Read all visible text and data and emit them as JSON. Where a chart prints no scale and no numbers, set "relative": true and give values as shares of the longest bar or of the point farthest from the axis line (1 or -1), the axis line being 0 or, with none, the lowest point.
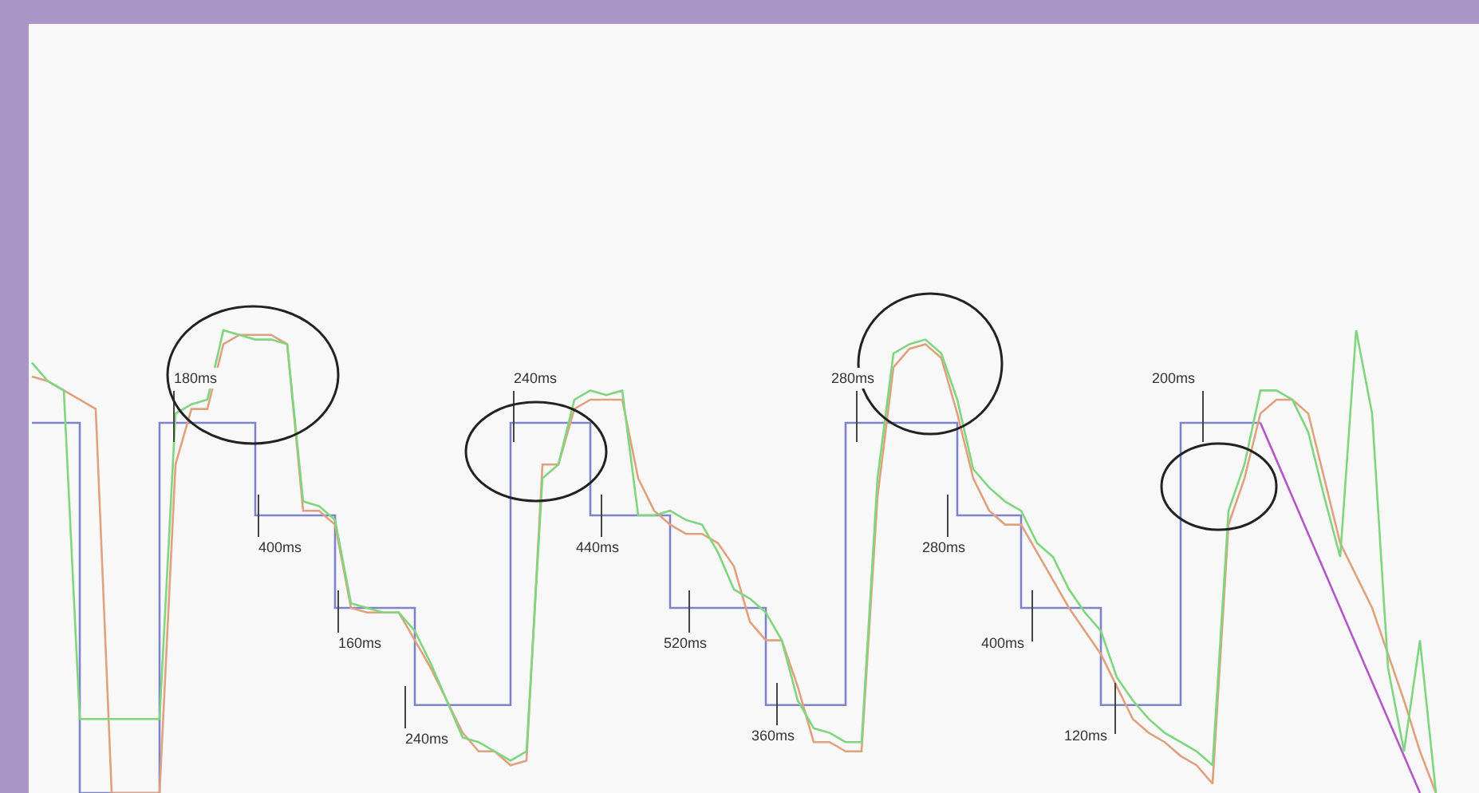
{
  "chart_data": {
    "type": "line",
    "relative": true,
    "marker": "none",
    "categories": [
      null,
      null,
      null,
      null,
      null,
      null,
      null,
      null,
      null,
      null,
      null,
      null,
      null,
      null,
      null,
      null,
      null,
      null,
      null,
      null,
      null,
      null,
      null,
      null,
      null,
      null,
      null,
      null,
      null,
      null,
      null,
      null,
      null,
      null,
      null,
      null,
      null,
      null,
      null,
      null,
      null,
      null,
      null,
      null,
      null,
      null,
      null,
      null,
      null,
      null,
      null,
      null,
      null,
      null,
      null,
      null,
      null,
      null,
      null,
      null,
      null,
      null,
      null,
      null,
      null,
      null,
      null,
      null,
      null,
      null,
      null,
      null,
      null,
      null,
      null,
      null,
      null,
      null,
      null,
      null,
      null,
      null,
      null,
      null,
      null,
      null,
      null,
      null,
      null
    ],
    "series": [
      {
        "type": "step",
        "color": "#7f84c9",
        "values": [
          0.8,
          0.8,
          0.8,
          0,
          0,
          0,
          0,
          0,
          0.8,
          0.8,
          0.8,
          0.8,
          0.8,
          0.8,
          0.6,
          0.6,
          0.6,
          0.6,
          0.6,
          0.4,
          0.4,
          0.4,
          0.4,
          0.4,
          0.19,
          0.19,
          0.19,
          0.19,
          0.19,
          0.19,
          0.8,
          0.8,
          0.8,
          0.8,
          0.8,
          0.6,
          0.6,
          0.6,
          0.6,
          0.6,
          0.4,
          0.4,
          0.4,
          0.4,
          0.4,
          0.4,
          0.19,
          0.19,
          0.19,
          0.19,
          0.19,
          0.8,
          0.8,
          0.8,
          0.8,
          0.8,
          0.8,
          0.8,
          0.6,
          0.6,
          0.6,
          0.6,
          0.4,
          0.4,
          0.4,
          0.4,
          0.4,
          0.19,
          0.19,
          0.19,
          0.19,
          0.19,
          0.8,
          0.8,
          0.8,
          0.8,
          0.8,
          0.8,
          null,
          null,
          null,
          null,
          null,
          null,
          null,
          null,
          null,
          null,
          null
        ]
      },
      {
        "color": "#b556c6",
        "values": [
          null,
          null,
          null,
          null,
          null,
          null,
          null,
          null,
          null,
          null,
          null,
          null,
          null,
          null,
          null,
          null,
          null,
          null,
          null,
          null,
          null,
          null,
          null,
          null,
          null,
          null,
          null,
          null,
          null,
          null,
          null,
          null,
          null,
          null,
          null,
          null,
          null,
          null,
          null,
          null,
          null,
          null,
          null,
          null,
          null,
          null,
          null,
          null,
          null,
          null,
          null,
          null,
          null,
          null,
          null,
          null,
          null,
          null,
          null,
          null,
          null,
          null,
          null,
          null,
          null,
          null,
          null,
          null,
          null,
          null,
          null,
          null,
          null,
          null,
          null,
          null,
          null,
          0.8,
          0.72,
          0.64,
          0.56,
          0.48,
          0.4,
          0.32,
          0.24,
          0.16,
          0.08,
          0,
          null
        ]
      },
      {
        "color": "#e0a27e",
        "values": [
          0.9,
          0.89,
          0.87,
          0.85,
          0.83,
          0,
          0,
          0,
          0,
          0.71,
          0.83,
          0.83,
          0.97,
          0.99,
          0.99,
          0.99,
          0.97,
          0.61,
          0.61,
          0.58,
          0.4,
          0.39,
          0.39,
          0.39,
          0.33,
          0.27,
          0.2,
          0.13,
          0.09,
          0.09,
          0.06,
          0.07,
          0.71,
          0.71,
          0.83,
          0.85,
          0.85,
          0.85,
          0.68,
          0.61,
          0.58,
          0.56,
          0.56,
          0.54,
          0.49,
          0.37,
          0.33,
          0.33,
          0.23,
          0.11,
          0.11,
          0.09,
          0.09,
          0.64,
          0.92,
          0.96,
          0.97,
          0.94,
          0.82,
          0.68,
          0.61,
          0.58,
          0.58,
          0.52,
          0.46,
          0.4,
          0.35,
          0.3,
          0.23,
          0.16,
          0.13,
          0.11,
          0.08,
          0.06,
          0.02,
          0.58,
          0.68,
          0.82,
          0.85,
          0.85,
          0.82,
          0.68,
          0.54,
          0.47,
          0.4,
          0.3,
          0.2,
          0.09,
          0
        ]
      },
      {
        "color": "#7fd67f",
        "values": [
          0.93,
          0.89,
          0.87,
          0.16,
          0.16,
          0.16,
          0.16,
          0.16,
          0.16,
          0.82,
          0.84,
          0.85,
          1,
          0.99,
          0.98,
          0.98,
          0.97,
          0.63,
          0.62,
          0.59,
          0.41,
          0.4,
          0.39,
          0.39,
          0.35,
          0.28,
          0.2,
          0.12,
          0.11,
          0.09,
          0.07,
          0.09,
          0.68,
          0.71,
          0.85,
          0.87,
          0.86,
          0.87,
          0.6,
          0.6,
          0.61,
          0.59,
          0.58,
          0.52,
          0.44,
          0.42,
          0.39,
          0.33,
          0.2,
          0.14,
          0.13,
          0.11,
          0.11,
          0.68,
          0.95,
          0.97,
          0.98,
          0.95,
          0.85,
          0.7,
          0.66,
          0.63,
          0.61,
          0.54,
          0.51,
          0.44,
          0.39,
          0.35,
          0.25,
          0.2,
          0.16,
          0.13,
          0.11,
          0.09,
          0.06,
          0.61,
          0.71,
          0.87,
          0.87,
          0.85,
          0.78,
          0.64,
          0.51,
          1,
          0.82,
          0.27,
          0.09,
          0.33,
          0
        ]
      }
    ],
    "annotations": [
      "180ms",
      "400ms",
      "160ms",
      "240ms",
      "240ms",
      "440ms",
      "520ms",
      "360ms",
      "280ms",
      "280ms",
      "400ms",
      "120ms",
      "200ms"
    ]
  }
}
